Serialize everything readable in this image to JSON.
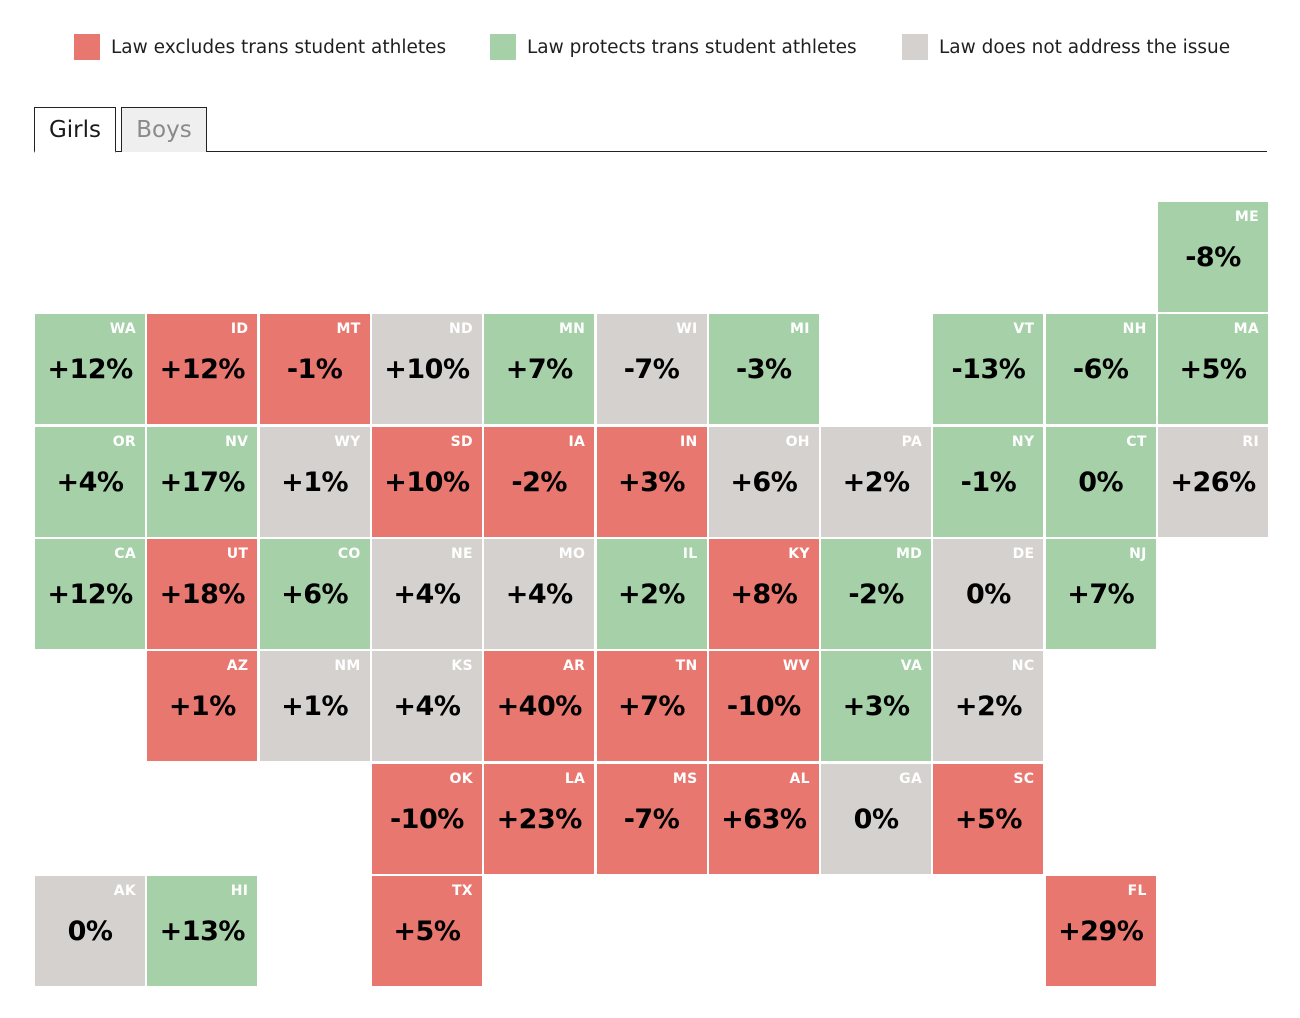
{
  "legend": [
    {
      "label": "Law excludes trans student athletes",
      "color": "#e8776f",
      "key": "excludes"
    },
    {
      "label": "Law protects trans student athletes",
      "color": "#a5d0a8",
      "key": "protects"
    },
    {
      "label": "Law does not address the issue",
      "color": "#d5d1ce",
      "key": "none"
    }
  ],
  "tabs": [
    {
      "label": "Girls",
      "selected": true
    },
    {
      "label": "Boys",
      "selected": false
    }
  ],
  "status_colors": {
    "excludes": "#e8776f",
    "protects": "#a5d0a8",
    "none": "#d5d1ce"
  },
  "map": {
    "states": [
      {
        "abbr": "ME",
        "value": "-8%",
        "status": "protects",
        "col": 10,
        "row": 0
      },
      {
        "abbr": "WA",
        "value": "+12%",
        "status": "protects",
        "col": 0,
        "row": 1
      },
      {
        "abbr": "ID",
        "value": "+12%",
        "status": "excludes",
        "col": 1,
        "row": 1
      },
      {
        "abbr": "MT",
        "value": "-1%",
        "status": "excludes",
        "col": 2,
        "row": 1
      },
      {
        "abbr": "ND",
        "value": "+10%",
        "status": "none",
        "col": 3,
        "row": 1
      },
      {
        "abbr": "MN",
        "value": "+7%",
        "status": "protects",
        "col": 4,
        "row": 1
      },
      {
        "abbr": "WI",
        "value": "-7%",
        "status": "none",
        "col": 5,
        "row": 1
      },
      {
        "abbr": "MI",
        "value": "-3%",
        "status": "protects",
        "col": 6,
        "row": 1
      },
      {
        "abbr": "VT",
        "value": "-13%",
        "status": "protects",
        "col": 8,
        "row": 1
      },
      {
        "abbr": "NH",
        "value": "-6%",
        "status": "protects",
        "col": 9,
        "row": 1
      },
      {
        "abbr": "MA",
        "value": "+5%",
        "status": "protects",
        "col": 10,
        "row": 1
      },
      {
        "abbr": "OR",
        "value": "+4%",
        "status": "protects",
        "col": 0,
        "row": 2
      },
      {
        "abbr": "NV",
        "value": "+17%",
        "status": "protects",
        "col": 1,
        "row": 2
      },
      {
        "abbr": "WY",
        "value": "+1%",
        "status": "none",
        "col": 2,
        "row": 2
      },
      {
        "abbr": "SD",
        "value": "+10%",
        "status": "excludes",
        "col": 3,
        "row": 2
      },
      {
        "abbr": "IA",
        "value": "-2%",
        "status": "excludes",
        "col": 4,
        "row": 2
      },
      {
        "abbr": "IN",
        "value": "+3%",
        "status": "excludes",
        "col": 5,
        "row": 2
      },
      {
        "abbr": "OH",
        "value": "+6%",
        "status": "none",
        "col": 6,
        "row": 2
      },
      {
        "abbr": "PA",
        "value": "+2%",
        "status": "none",
        "col": 7,
        "row": 2
      },
      {
        "abbr": "NY",
        "value": "-1%",
        "status": "protects",
        "col": 8,
        "row": 2
      },
      {
        "abbr": "CT",
        "value": "0%",
        "status": "protects",
        "col": 9,
        "row": 2
      },
      {
        "abbr": "RI",
        "value": "+26%",
        "status": "none",
        "col": 10,
        "row": 2
      },
      {
        "abbr": "CA",
        "value": "+12%",
        "status": "protects",
        "col": 0,
        "row": 3
      },
      {
        "abbr": "UT",
        "value": "+18%",
        "status": "excludes",
        "col": 1,
        "row": 3
      },
      {
        "abbr": "CO",
        "value": "+6%",
        "status": "protects",
        "col": 2,
        "row": 3
      },
      {
        "abbr": "NE",
        "value": "+4%",
        "status": "none",
        "col": 3,
        "row": 3
      },
      {
        "abbr": "MO",
        "value": "+4%",
        "status": "none",
        "col": 4,
        "row": 3
      },
      {
        "abbr": "IL",
        "value": "+2%",
        "status": "protects",
        "col": 5,
        "row": 3
      },
      {
        "abbr": "KY",
        "value": "+8%",
        "status": "excludes",
        "col": 6,
        "row": 3
      },
      {
        "abbr": "MD",
        "value": "-2%",
        "status": "protects",
        "col": 7,
        "row": 3
      },
      {
        "abbr": "DE",
        "value": "0%",
        "status": "none",
        "col": 8,
        "row": 3
      },
      {
        "abbr": "NJ",
        "value": "+7%",
        "status": "protects",
        "col": 9,
        "row": 3
      },
      {
        "abbr": "AZ",
        "value": "+1%",
        "status": "excludes",
        "col": 1,
        "row": 4
      },
      {
        "abbr": "NM",
        "value": "+1%",
        "status": "none",
        "col": 2,
        "row": 4
      },
      {
        "abbr": "KS",
        "value": "+4%",
        "status": "none",
        "col": 3,
        "row": 4
      },
      {
        "abbr": "AR",
        "value": "+40%",
        "status": "excludes",
        "col": 4,
        "row": 4
      },
      {
        "abbr": "TN",
        "value": "+7%",
        "status": "excludes",
        "col": 5,
        "row": 4
      },
      {
        "abbr": "WV",
        "value": "-10%",
        "status": "excludes",
        "col": 6,
        "row": 4
      },
      {
        "abbr": "VA",
        "value": "+3%",
        "status": "protects",
        "col": 7,
        "row": 4
      },
      {
        "abbr": "NC",
        "value": "+2%",
        "status": "none",
        "col": 8,
        "row": 4
      },
      {
        "abbr": "OK",
        "value": "-10%",
        "status": "excludes",
        "col": 3,
        "row": 5
      },
      {
        "abbr": "LA",
        "value": "+23%",
        "status": "excludes",
        "col": 4,
        "row": 5
      },
      {
        "abbr": "MS",
        "value": "-7%",
        "status": "excludes",
        "col": 5,
        "row": 5
      },
      {
        "abbr": "AL",
        "value": "+63%",
        "status": "excludes",
        "col": 6,
        "row": 5
      },
      {
        "abbr": "GA",
        "value": "0%",
        "status": "none",
        "col": 7,
        "row": 5
      },
      {
        "abbr": "SC",
        "value": "+5%",
        "status": "excludes",
        "col": 8,
        "row": 5
      },
      {
        "abbr": "AK",
        "value": "0%",
        "status": "none",
        "col": 0,
        "row": 6
      },
      {
        "abbr": "HI",
        "value": "+13%",
        "status": "protects",
        "col": 1,
        "row": 6
      },
      {
        "abbr": "TX",
        "value": "+5%",
        "status": "excludes",
        "col": 3,
        "row": 6
      },
      {
        "abbr": "FL",
        "value": "+29%",
        "status": "excludes",
        "col": 9,
        "row": 6
      }
    ]
  }
}
